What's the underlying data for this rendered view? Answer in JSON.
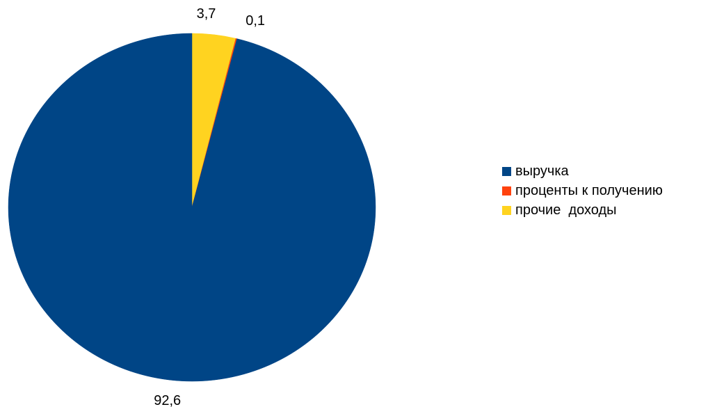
{
  "chart_data": {
    "type": "pie",
    "categories": [
      "выручка",
      "проценты к получению",
      "прочие  доходы"
    ],
    "values": [
      92.6,
      0.1,
      3.7
    ],
    "value_labels": [
      "92,6",
      "0,1",
      "3,7"
    ],
    "colors": [
      "#004586",
      "#ff420e",
      "#ffd320"
    ],
    "title": "",
    "legend_position": "right"
  },
  "legend": {
    "items": [
      {
        "label": "выручка",
        "color": "#004586"
      },
      {
        "label": "проценты к получению",
        "color": "#ff420e"
      },
      {
        "label": "прочие  доходы",
        "color": "#ffd320"
      }
    ]
  }
}
